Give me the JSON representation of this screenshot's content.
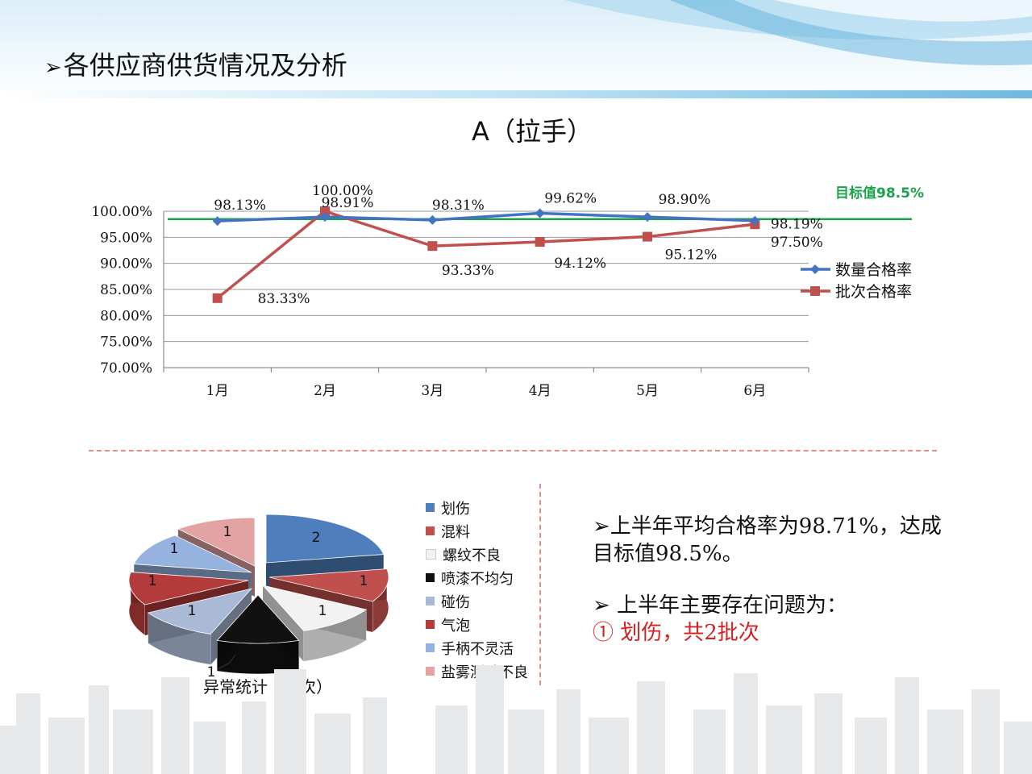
{
  "page": {
    "title": "各供应商供货情况及分析"
  },
  "chart_data": [
    {
      "type": "line",
      "title": "A（拉手）",
      "categories": [
        "1月",
        "2月",
        "3月",
        "4月",
        "5月",
        "6月"
      ],
      "ylim": [
        70,
        100
      ],
      "yticks": [
        "100.00%",
        "95.00%",
        "90.00%",
        "85.00%",
        "80.00%",
        "75.00%",
        "70.00%"
      ],
      "grid": true,
      "legend_position": "right",
      "target": {
        "label": "目标值98.5%",
        "value": 98.5,
        "color": "#1aa34a"
      },
      "series": [
        {
          "name": "数量合格率",
          "color": "#4472c4",
          "marker": "diamond",
          "values": [
            98.13,
            98.91,
            98.31,
            99.62,
            98.9,
            98.19
          ],
          "labels": [
            "98.13%",
            "98.91%",
            "98.31%",
            "99.62%",
            "98.90%",
            "98.19%"
          ]
        },
        {
          "name": "批次合格率",
          "color": "#c0504d",
          "marker": "square",
          "values": [
            83.33,
            100.0,
            93.33,
            94.12,
            95.12,
            97.5
          ],
          "labels": [
            "83.33%",
            "100.00%",
            "93.33%",
            "94.12%",
            "95.12%",
            "97.50%"
          ]
        }
      ]
    },
    {
      "type": "pie",
      "title": "异常统计（批次）",
      "categories": [
        "划伤",
        "混料",
        "螺纹不良",
        "喷漆不均匀",
        "碰伤",
        "气泡",
        "手柄不灵活",
        "盐雾测试不良"
      ],
      "values": [
        2,
        1,
        1,
        1,
        1,
        1,
        1,
        1
      ],
      "colors": [
        "#4f7ebc",
        "#c0504d",
        "#f2f2f2",
        "#111111",
        "#a9b9d6",
        "#b33b3b",
        "#95b3de",
        "#e3a3a3"
      ],
      "labels": [
        "2",
        "1",
        "1",
        "1",
        "1",
        "1",
        "1",
        "1"
      ]
    }
  ],
  "summary": {
    "line1": "➢上半年平均合格率为98.71%，达成",
    "line2": "目标值98.5%。",
    "line3": "➢   上半年主要存在问题为：",
    "line4": "①  划伤，共2批次"
  }
}
